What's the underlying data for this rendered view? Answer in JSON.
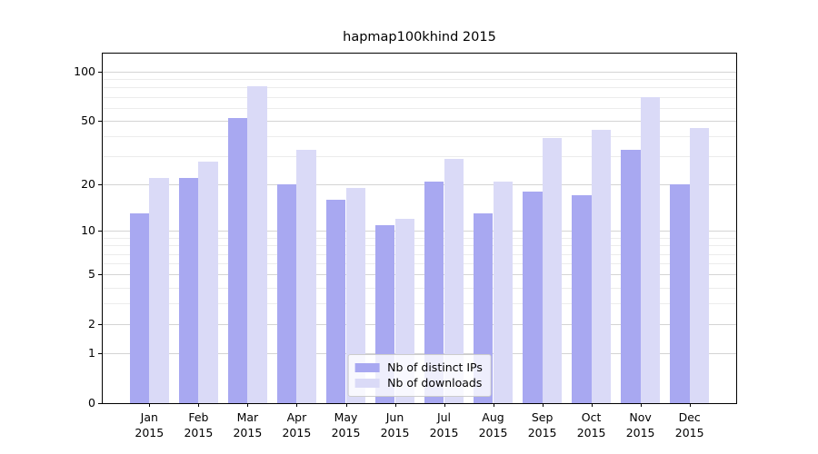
{
  "title": "hapmap100khind 2015",
  "chart_data": {
    "type": "bar",
    "title": "hapmap100khind 2015",
    "categories": [
      "Jan",
      "Feb",
      "Mar",
      "Apr",
      "May",
      "Jun",
      "Jul",
      "Aug",
      "Sep",
      "Oct",
      "Nov",
      "Dec"
    ],
    "category_year": "2015",
    "series": [
      {
        "name": "Nb of distinct IPs",
        "color": "#a8a8f1",
        "values": [
          13,
          22,
          52,
          20,
          16,
          11,
          21,
          13,
          18,
          17,
          33,
          20
        ]
      },
      {
        "name": "Nb of downloads",
        "color": "#dadaf7",
        "values": [
          22,
          28,
          81,
          33,
          19,
          12,
          29,
          21,
          39,
          44,
          70,
          45
        ]
      }
    ],
    "xlabel": "",
    "ylabel": "",
    "yscale": "log10(1+value)",
    "ylim": [
      0,
      129
    ],
    "yticks_major": [
      0,
      1,
      2,
      5,
      10,
      20,
      50,
      100
    ],
    "yticks_minor": [
      3,
      4,
      6,
      7,
      8,
      9,
      30,
      40,
      60,
      70,
      80,
      90
    ],
    "grid": true,
    "legend_position": "lower center"
  },
  "colors": {
    "grid_major": "#d4d4d4",
    "grid_minor": "#ececec",
    "spine": "#000000",
    "legend_border": "#cccccc",
    "legend_bg": "rgba(255,255,255,0.8)",
    "text": "#000000"
  }
}
